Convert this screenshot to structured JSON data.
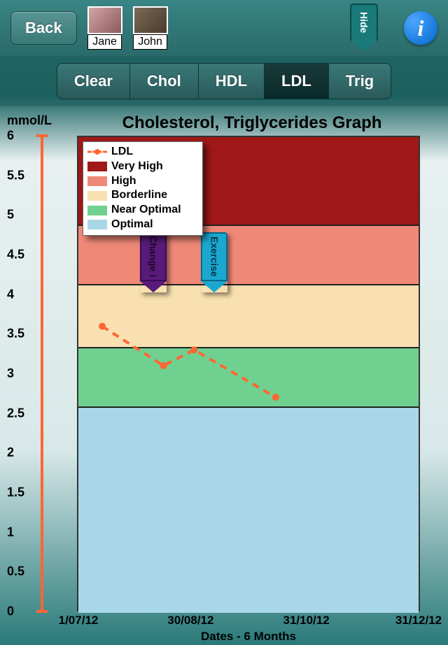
{
  "header": {
    "back_label": "Back",
    "profiles": [
      {
        "name": "Jane",
        "bg": "#c89090"
      },
      {
        "name": "John",
        "bg": "#7a5a3a"
      }
    ],
    "hide_label": "Hide",
    "info_label": "i"
  },
  "tabs": {
    "items": [
      "Clear",
      "Chol",
      "HDL",
      "LDL",
      "Trig"
    ],
    "active_index": 3
  },
  "chart": {
    "title": "Cholesterol, Triglycerides Graph",
    "y_unit": "mmol/L",
    "ylim": [
      0,
      6
    ],
    "ytick_step": 0.5,
    "y_ticks": [
      "6",
      "5.5",
      "5",
      "4.5",
      "4",
      "3.5",
      "3",
      "2.5",
      "2",
      "1.5",
      "1",
      "0.5",
      "0"
    ],
    "y_tick_values": [
      6,
      5.5,
      5,
      4.5,
      4,
      3.5,
      3,
      2.5,
      2,
      1.5,
      1,
      0.5,
      0
    ],
    "x_label": "Dates - 6 Months",
    "x_ticks": [
      {
        "label": "1/07/12",
        "pos": 0
      },
      {
        "label": "30/08/12",
        "pos": 0.33
      },
      {
        "label": "31/10/12",
        "pos": 0.67
      },
      {
        "label": "31/12/12",
        "pos": 1.0
      }
    ],
    "bands": [
      {
        "name": "Very High",
        "color": "#a01818",
        "from": 4.9,
        "to": 6.0
      },
      {
        "name": "High",
        "color": "#f08878",
        "from": 4.15,
        "to": 4.9
      },
      {
        "name": "Borderline",
        "color": "#f8e0b0",
        "from": 3.35,
        "to": 4.15
      },
      {
        "name": "Near Optimal",
        "color": "#70d090",
        "from": 2.6,
        "to": 3.35
      },
      {
        "name": "Optimal",
        "color": "#a8d8e8",
        "from": 0,
        "to": 2.6
      }
    ],
    "legend": {
      "series_label": "LDL",
      "series_color": "#ff6633"
    },
    "series": {
      "type": "line",
      "line_style": "dashed",
      "line_width": 4,
      "marker": "circle",
      "marker_size": 10,
      "color": "#ff6633",
      "points": [
        {
          "x": 0.07,
          "y": 3.6
        },
        {
          "x": 0.25,
          "y": 3.1
        },
        {
          "x": 0.34,
          "y": 3.3
        },
        {
          "x": 0.58,
          "y": 2.7
        }
      ]
    },
    "markers": [
      {
        "label": "Change i",
        "x": 0.22,
        "y_top": 4.8,
        "body_color": "#5a1a7a",
        "text_color": "#1a0a2a",
        "border": "#3a0a5a"
      },
      {
        "label": "Exercise",
        "x": 0.4,
        "y_top": 4.8,
        "body_color": "#1aa8d0",
        "text_color": "#083848",
        "border": "#0a6888"
      }
    ],
    "axis_color": "#ff6633",
    "plot_border": "#333333"
  }
}
